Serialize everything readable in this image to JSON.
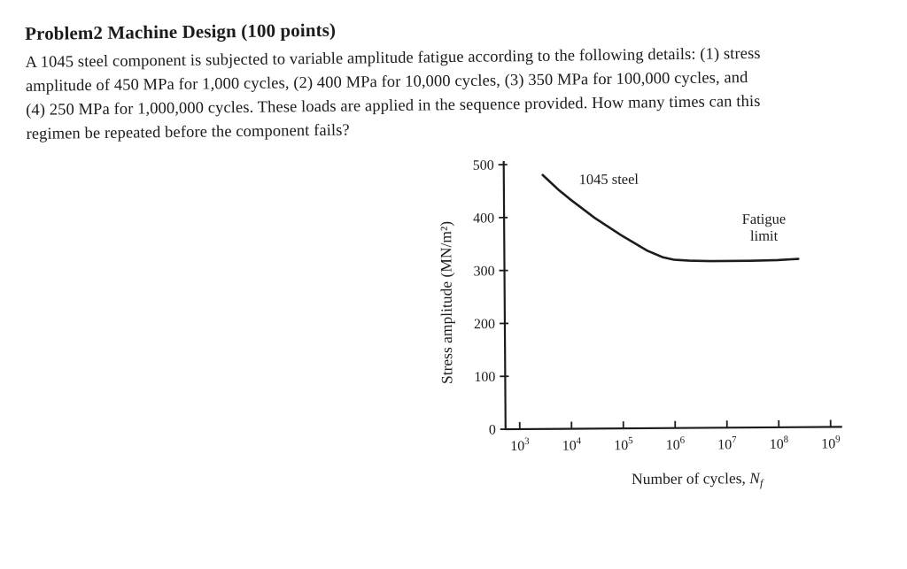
{
  "document": {
    "title": "Problem2 Machine Design (100 points)",
    "body_lines": [
      "A 1045 steel component is subjected to variable amplitude fatigue according to the following details: (1) stress",
      "amplitude of 450 MPa for 1,000 cycles, (2) 400 MPa for 10,000 cycles, (3) 350 MPa for 100,000 cycles, and",
      "(4) 250 MPa for 1,000,000 cycles. These loads are applied in the sequence provided. How many times can this",
      "regimen be repeated before the component fails?"
    ]
  },
  "chart_data": {
    "type": "line",
    "title": "",
    "x_scale": "log",
    "xlabel_prefix": "Number of cycles, ",
    "xlabel_symbol": "N",
    "xlabel_subscript": "f",
    "ylabel": "Stress amplitude (MN/m²)",
    "ylim": [
      0,
      500
    ],
    "yticks": [
      0,
      100,
      200,
      300,
      400,
      500
    ],
    "x_tick_exponents": [
      3,
      4,
      5,
      6,
      7,
      8,
      9
    ],
    "grid": false,
    "legend_position": "none",
    "series": [
      {
        "name": "1045 steel",
        "points": [
          [
            3000,
            480
          ],
          [
            6000,
            452
          ],
          [
            10000,
            434
          ],
          [
            30000,
            398
          ],
          [
            100000,
            364
          ],
          [
            300000,
            336
          ],
          [
            600000,
            323
          ],
          [
            1000000,
            318
          ],
          [
            2000000,
            316
          ],
          [
            5000000,
            315
          ],
          [
            10000000,
            315
          ],
          [
            30000000,
            315
          ],
          [
            100000000,
            316
          ],
          [
            250000000,
            318
          ]
        ]
      }
    ],
    "fatigue_limit_mpa": 318,
    "annotations": [
      {
        "lines": [
          "1045 steel"
        ],
        "x": 15000,
        "y": 462,
        "anchor": "start"
      },
      {
        "lines": [
          "Fatigue",
          "limit"
        ],
        "x": 55000000,
        "y": 385,
        "anchor": "middle"
      }
    ]
  },
  "colors": {
    "ink": "#1c1c1c",
    "background": "#ffffff"
  }
}
